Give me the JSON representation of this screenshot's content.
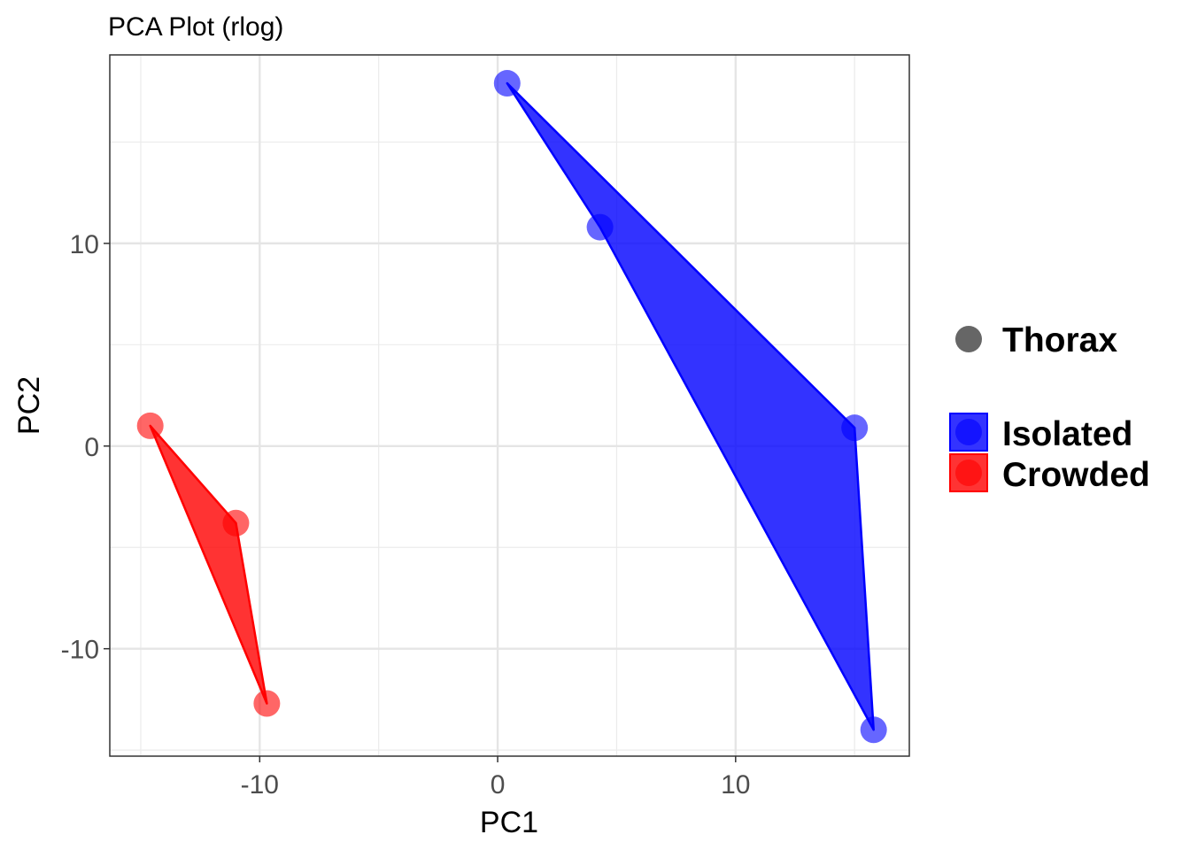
{
  "chart_data": {
    "type": "scatter",
    "title": "PCA Plot (rlog)",
    "xlabel": "PC1",
    "ylabel": "PC2",
    "xlim": [
      -16.3,
      17.3
    ],
    "ylim": [
      -15.3,
      19.3
    ],
    "x_ticks": [
      -10,
      0,
      10
    ],
    "x_tick_labels": [
      "-10",
      "0",
      "10"
    ],
    "y_ticks": [
      -10,
      0,
      10
    ],
    "y_tick_labels": [
      "-10",
      "0",
      "10"
    ],
    "x_minor": [
      -15,
      -5,
      5,
      15
    ],
    "y_minor": [
      -15,
      -5,
      5,
      15
    ],
    "grid": true,
    "legend_position": "right",
    "shape_legend": [
      {
        "label": "Thorax",
        "color": "#666666"
      }
    ],
    "series": [
      {
        "name": "Isolated",
        "color": "#0000ff",
        "x": [
          0.4,
          4.3,
          15.0,
          15.8
        ],
        "y": [
          17.9,
          10.8,
          0.9,
          -14.0
        ],
        "hull": [
          [
            0.4,
            17.9
          ],
          [
            15.0,
            0.9
          ],
          [
            15.8,
            -14.0
          ],
          [
            4.3,
            10.8
          ]
        ]
      },
      {
        "name": "Crowded",
        "color": "#ff0000",
        "x": [
          -14.6,
          -11.0,
          -9.7
        ],
        "y": [
          1.0,
          -3.8,
          -12.7
        ],
        "hull": [
          [
            -14.6,
            1.0
          ],
          [
            -11.0,
            -3.8
          ],
          [
            -9.7,
            -12.7
          ]
        ]
      }
    ]
  }
}
